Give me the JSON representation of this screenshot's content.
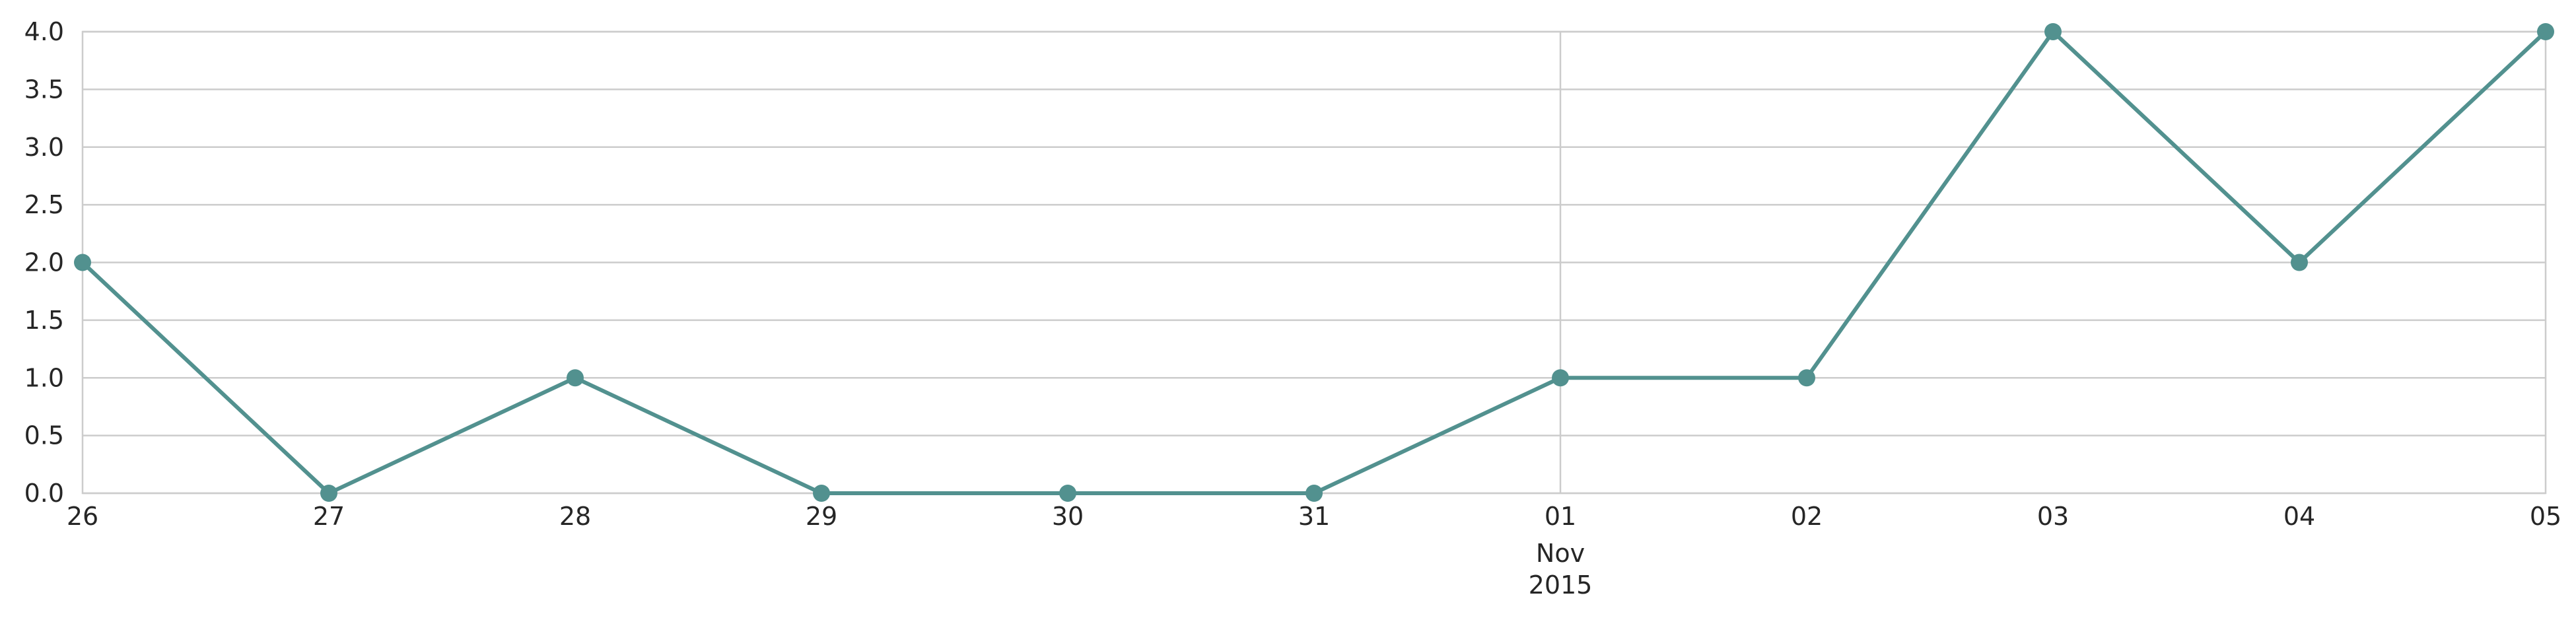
{
  "chart_data": {
    "type": "line",
    "x": [
      "2015-10-26",
      "2015-10-27",
      "2015-10-28",
      "2015-10-29",
      "2015-10-30",
      "2015-10-31",
      "2015-11-01",
      "2015-11-02",
      "2015-11-03",
      "2015-11-04",
      "2015-11-05"
    ],
    "x_tick_labels": [
      "26",
      "27",
      "28",
      "29",
      "30",
      "31",
      "01",
      "02",
      "03",
      "04",
      "05"
    ],
    "x_secondary_label": {
      "month": "Nov",
      "year": "2015",
      "under_tick": "01"
    },
    "series": [
      {
        "values": [
          2,
          0,
          1,
          0,
          0,
          0,
          1,
          1,
          4,
          2,
          4
        ],
        "color": "#52918f"
      }
    ],
    "y_ticks": [
      "0.0",
      "0.5",
      "1.0",
      "1.5",
      "2.0",
      "2.5",
      "3.0",
      "3.5",
      "4.0"
    ],
    "ylim": [
      0,
      4
    ],
    "title": "",
    "xlabel": "",
    "ylabel": "",
    "grid": true,
    "colors": {
      "line": "#52918f",
      "grid": "#cccccc",
      "axis": "#cccccc",
      "text": "#262626"
    }
  }
}
